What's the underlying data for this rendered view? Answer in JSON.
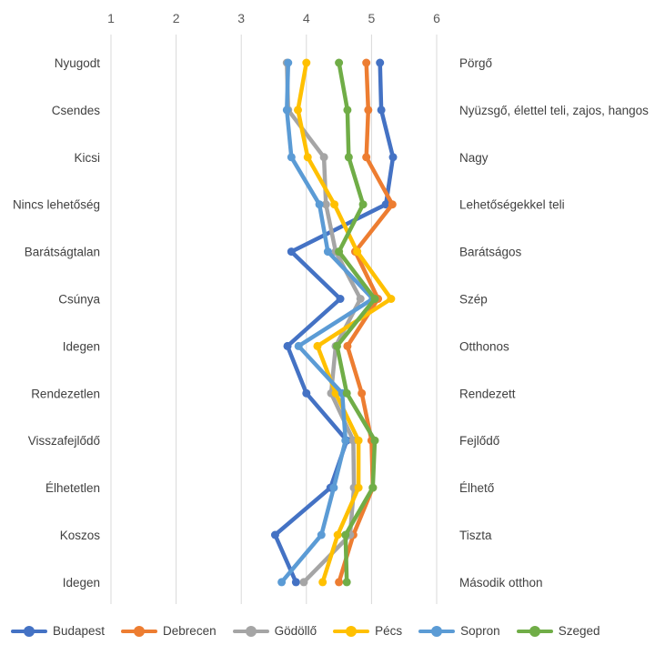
{
  "chart_data": {
    "type": "line",
    "orientation": "horizontal-values",
    "xlim": [
      1,
      6
    ],
    "x_ticks": [
      "1",
      "2",
      "3",
      "4",
      "5",
      "6"
    ],
    "grid": true,
    "legend_position": "bottom",
    "left_labels": [
      "Nyugodt",
      "Csendes",
      "Kicsi",
      "Nincs lehetőség",
      "Barátságtalan",
      "Csúnya",
      "Idegen",
      "Rendezetlen",
      "Visszafejlődő",
      "Élhetetlen",
      "Koszos",
      "Idegen"
    ],
    "right_labels": [
      "Pörgő",
      "Nyüzsgő, élettel teli, zajos, hangos",
      "Nagy",
      "Lehetőségekkel teli",
      "Barátságos",
      "Szép",
      "Otthonos",
      "Rendezett",
      "Fejlődő",
      "Élhető",
      "Tiszta",
      "Második otthon"
    ],
    "series": [
      {
        "name": "Budapest",
        "color": "#4472C4",
        "values": [
          5.13,
          5.15,
          5.33,
          5.22,
          3.77,
          4.52,
          3.71,
          4.0,
          4.62,
          4.37,
          3.52,
          3.84
        ]
      },
      {
        "name": "Debrecen",
        "color": "#ED7D31",
        "values": [
          4.92,
          4.95,
          4.92,
          5.32,
          4.75,
          5.1,
          4.63,
          4.85,
          5.0,
          5.02,
          4.72,
          4.5
        ]
      },
      {
        "name": "Gödöllő",
        "color": "#A5A5A5",
        "values": [
          3.7,
          3.72,
          4.27,
          4.3,
          4.45,
          4.83,
          4.45,
          4.38,
          4.72,
          4.73,
          4.67,
          3.96
        ]
      },
      {
        "name": "Pécs",
        "color": "#FFC000",
        "values": [
          4.0,
          3.87,
          4.02,
          4.43,
          4.78,
          5.3,
          4.17,
          4.45,
          4.8,
          4.8,
          4.48,
          4.25
        ]
      },
      {
        "name": "Sopron",
        "color": "#5B9BD5",
        "values": [
          3.72,
          3.7,
          3.77,
          4.2,
          4.33,
          5.02,
          3.88,
          4.55,
          4.6,
          4.42,
          4.23,
          3.62
        ]
      },
      {
        "name": "Szeged",
        "color": "#70AD47",
        "values": [
          4.5,
          4.63,
          4.65,
          4.87,
          4.5,
          5.05,
          4.47,
          4.62,
          5.05,
          5.02,
          4.6,
          4.62
        ]
      }
    ]
  }
}
